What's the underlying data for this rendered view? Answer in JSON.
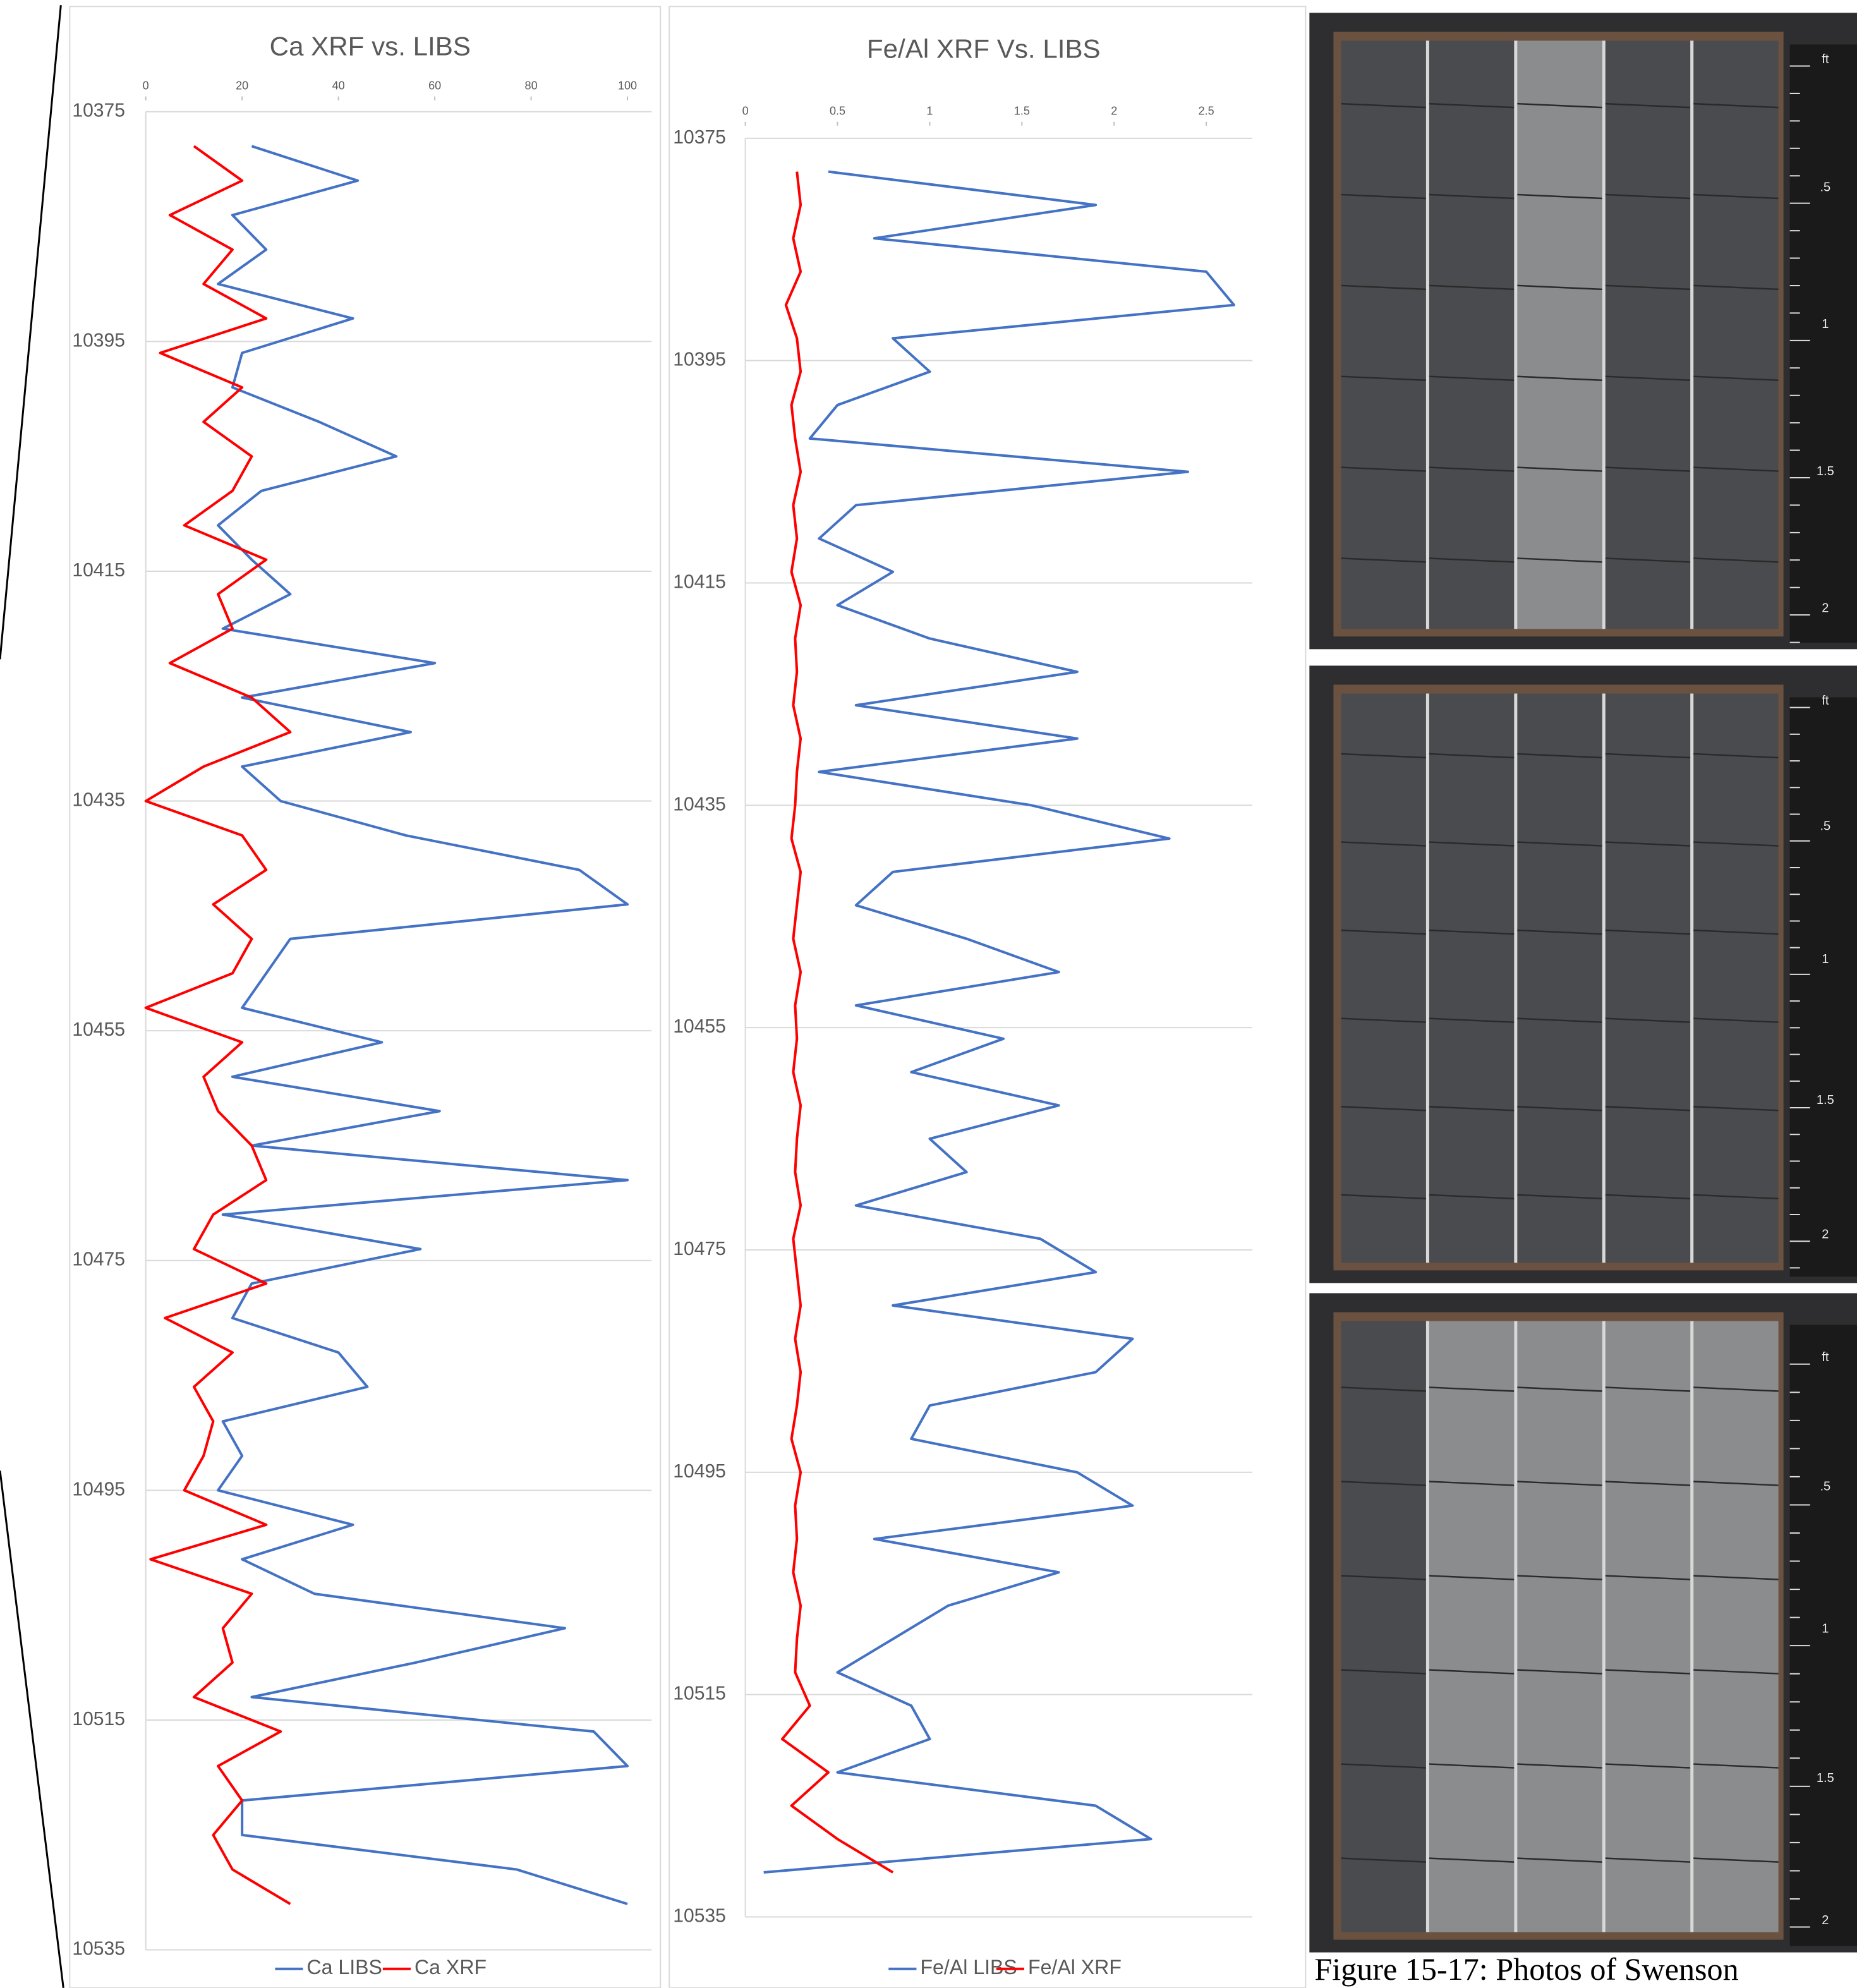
{
  "chart_data": [
    {
      "type": "line",
      "title": "Ca XRF vs. LIBS",
      "y": [
        10378,
        10381,
        10384,
        10387,
        10390,
        10393,
        10396,
        10399,
        10402,
        10405,
        10408,
        10411,
        10414,
        10417,
        10420,
        10423,
        10426,
        10429,
        10432,
        10435,
        10438,
        10441,
        10444,
        10447,
        10450,
        10453,
        10456,
        10459,
        10462,
        10465,
        10468,
        10471,
        10474,
        10477,
        10480,
        10483,
        10486,
        10489,
        10492,
        10495,
        10498,
        10501,
        10504,
        10507,
        10510,
        10513,
        10516,
        10519,
        10522,
        10525,
        10528,
        10531
      ],
      "series": [
        {
          "name": "Ca LIBS",
          "color": "#4472c4",
          "values": [
            22,
            44,
            18,
            25,
            15,
            43,
            20,
            18,
            36,
            52,
            24,
            15,
            22,
            30,
            16,
            60,
            20,
            55,
            20,
            28,
            54,
            90,
            100,
            30,
            25,
            20,
            49,
            18,
            61,
            22,
            100,
            16,
            57,
            22,
            18,
            40,
            46,
            16,
            20,
            15,
            43,
            20,
            35,
            87,
            56,
            22,
            93,
            100,
            20,
            20,
            77,
            100
          ]
        },
        {
          "name": "Ca XRF",
          "color": "#ff0000",
          "values": [
            10,
            20,
            5,
            18,
            12,
            25,
            3,
            20,
            12,
            22,
            18,
            8,
            25,
            15,
            18,
            5,
            22,
            30,
            12,
            0,
            20,
            25,
            14,
            22,
            18,
            0,
            20,
            12,
            15,
            22,
            25,
            14,
            10,
            25,
            4,
            18,
            10,
            14,
            12,
            8,
            25,
            1,
            22,
            16,
            18,
            10,
            28,
            15,
            20,
            14,
            18,
            30
          ]
        }
      ],
      "xlim": [
        0,
        105
      ],
      "xticks": [
        0,
        20,
        40,
        60,
        80,
        100
      ],
      "ylim": [
        10375,
        10535
      ],
      "yticks": [
        10375,
        10395,
        10415,
        10435,
        10455,
        10475,
        10495,
        10515,
        10535
      ],
      "grid": true
    },
    {
      "type": "line",
      "title": "Fe/Al XRF Vs. LIBS",
      "y": [
        10378,
        10381,
        10384,
        10387,
        10390,
        10393,
        10396,
        10399,
        10402,
        10405,
        10408,
        10411,
        10414,
        10417,
        10420,
        10423,
        10426,
        10429,
        10432,
        10435,
        10438,
        10441,
        10444,
        10447,
        10450,
        10453,
        10456,
        10459,
        10462,
        10465,
        10468,
        10471,
        10474,
        10477,
        10480,
        10483,
        10486,
        10489,
        10492,
        10495,
        10498,
        10501,
        10504,
        10507,
        10510,
        10513,
        10516,
        10519,
        10522,
        10525,
        10528,
        10531
      ],
      "series": [
        {
          "name": "Fe/Al LIBS",
          "color": "#4472c4",
          "values": [
            0.45,
            1.9,
            0.7,
            2.5,
            2.65,
            0.8,
            1.0,
            0.5,
            0.35,
            2.4,
            0.6,
            0.4,
            0.8,
            0.5,
            1.0,
            1.8,
            0.6,
            1.8,
            0.4,
            1.55,
            2.3,
            0.8,
            0.6,
            1.2,
            1.7,
            0.6,
            1.4,
            0.9,
            1.7,
            1.0,
            1.2,
            0.6,
            1.6,
            1.9,
            0.8,
            2.1,
            1.9,
            1.0,
            0.9,
            1.8,
            2.1,
            0.7,
            1.7,
            1.1,
            0.8,
            0.5,
            0.9,
            1.0,
            0.5,
            1.9,
            2.2,
            0.1
          ]
        },
        {
          "name": "Fe/Al XRF",
          "color": "#ff0000",
          "values": [
            0.28,
            0.3,
            0.26,
            0.3,
            0.22,
            0.28,
            0.3,
            0.25,
            0.27,
            0.3,
            0.26,
            0.28,
            0.25,
            0.3,
            0.27,
            0.28,
            0.26,
            0.3,
            0.28,
            0.27,
            0.25,
            0.3,
            0.28,
            0.26,
            0.3,
            0.27,
            0.28,
            0.26,
            0.3,
            0.28,
            0.27,
            0.3,
            0.26,
            0.28,
            0.3,
            0.27,
            0.3,
            0.28,
            0.25,
            0.3,
            0.27,
            0.28,
            0.26,
            0.3,
            0.28,
            0.27,
            0.35,
            0.2,
            0.45,
            0.25,
            0.5,
            0.8
          ]
        }
      ],
      "xlim": [
        0,
        2.75
      ],
      "xticks": [
        0,
        0.5,
        1,
        1.5,
        2,
        2.5
      ],
      "ylim": [
        10375,
        10535
      ],
      "yticks": [
        10375,
        10395,
        10415,
        10435,
        10455,
        10475,
        10495,
        10515,
        10535
      ],
      "grid": true
    }
  ],
  "photos": [
    {
      "ruler_labels": [
        "ft",
        ".5",
        "1",
        "1.5",
        "2"
      ]
    },
    {
      "ruler_labels": [
        "ft",
        ".5",
        "1",
        "1.5",
        "2"
      ]
    },
    {
      "ruler_labels": [
        "ft",
        ".5",
        "1",
        "1.5",
        "2"
      ]
    }
  ],
  "caption": "Figure 15-17: Photos of Swenson"
}
